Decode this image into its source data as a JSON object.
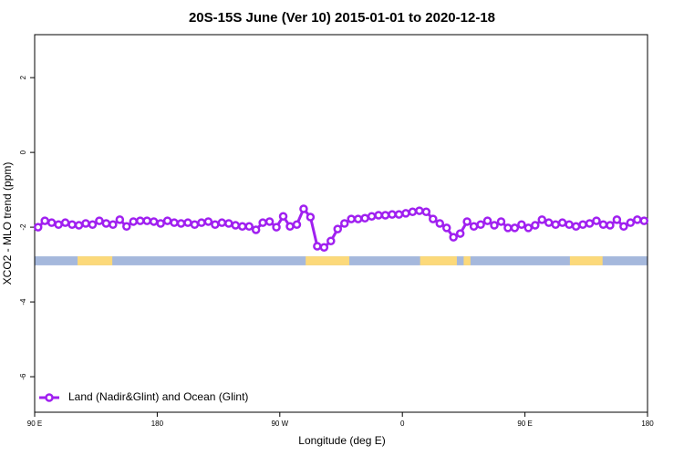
{
  "chart_data": {
    "type": "line",
    "title": "20S-15S June (Ver 10)   2015-01-01 to 2020-12-18",
    "x_label": "Longitude (deg E)",
    "y_label": "XCO2 - MLO trend (ppm)",
    "xlim": [
      90,
      540
    ],
    "xticks": [
      {
        "value": 90,
        "label": "90 E"
      },
      180,
      {
        "value": 270,
        "label": "90 W"
      },
      {
        "value": 360,
        "label": "0"
      },
      {
        "value": 450,
        "label": "90 E"
      },
      {
        "value": 540,
        "label": "180"
      }
    ],
    "ylim": [
      -6.95,
      3.15
    ],
    "yticks": [
      -6,
      -4,
      -2,
      0,
      2
    ],
    "legend": "bottom-left",
    "x": [
      92.5,
      97.5,
      102.5,
      107.5,
      112.5,
      117.5,
      122.5,
      127.5,
      132.5,
      137.5,
      142.5,
      147.5,
      152.5,
      157.5,
      162.5,
      167.5,
      172.5,
      177.5,
      182.5,
      187.5,
      192.5,
      197.5,
      202.5,
      207.5,
      212.5,
      217.5,
      222.5,
      227.5,
      232.5,
      237.5,
      242.5,
      247.5,
      252.5,
      257.5,
      262.5,
      267.5,
      272.5,
      277.5,
      282.5,
      287.5,
      292.5,
      297.5,
      302.5,
      307.5,
      312.5,
      317.5,
      322.5,
      327.5,
      332.5,
      337.5,
      342.5,
      347.5,
      352.5,
      357.5,
      362.5,
      367.5,
      372.5,
      377.5,
      382.5,
      387.5,
      392.5,
      397.5,
      402.5,
      407.5,
      412.5,
      417.5,
      422.5,
      427.5,
      432.5,
      437.5,
      442.5,
      447.5,
      452.5,
      457.5,
      462.5,
      467.5,
      472.5,
      477.5,
      482.5,
      487.5,
      492.5,
      497.5,
      502.5,
      507.5,
      512.5,
      517.5,
      522.5,
      527.5,
      532.5,
      537.5
    ],
    "series": [
      {
        "name": "Land (Nadir&Glint) and Ocean (Glint)",
        "color": "#a020f0",
        "values": [
          -2.0,
          -1.83,
          -1.88,
          -1.93,
          -1.88,
          -1.93,
          -1.95,
          -1.9,
          -1.93,
          -1.83,
          -1.9,
          -1.93,
          -1.8,
          -1.98,
          -1.85,
          -1.83,
          -1.83,
          -1.85,
          -1.9,
          -1.83,
          -1.88,
          -1.9,
          -1.88,
          -1.93,
          -1.88,
          -1.85,
          -1.93,
          -1.88,
          -1.9,
          -1.95,
          -1.98,
          -1.98,
          -2.07,
          -1.88,
          -1.85,
          -2.0,
          -1.71,
          -1.98,
          -1.93,
          -1.51,
          -1.73,
          -2.51,
          -2.54,
          -2.37,
          -2.05,
          -1.9,
          -1.78,
          -1.78,
          -1.76,
          -1.71,
          -1.68,
          -1.68,
          -1.66,
          -1.66,
          -1.63,
          -1.59,
          -1.56,
          -1.59,
          -1.78,
          -1.9,
          -2.02,
          -2.27,
          -2.17,
          -1.85,
          -1.98,
          -1.93,
          -1.83,
          -1.95,
          -1.85,
          -2.02,
          -2.02,
          -1.93,
          -2.02,
          -1.95,
          -1.8,
          -1.88,
          -1.93,
          -1.88,
          -1.93,
          -1.98,
          -1.93,
          -1.9,
          -1.83,
          -1.93,
          -1.95,
          -1.8,
          -1.98,
          -1.88,
          -1.8,
          -1.83
        ]
      }
    ],
    "surface_band": {
      "ylim": [
        -3.02,
        -2.78
      ],
      "ocean_color": "#a5b8dc",
      "land_color": "#fcd97a",
      "land": [
        [
          121.5,
          147
        ],
        [
          289,
          321
        ],
        [
          373,
          400
        ],
        [
          405,
          410
        ],
        [
          483,
          507
        ]
      ]
    }
  }
}
